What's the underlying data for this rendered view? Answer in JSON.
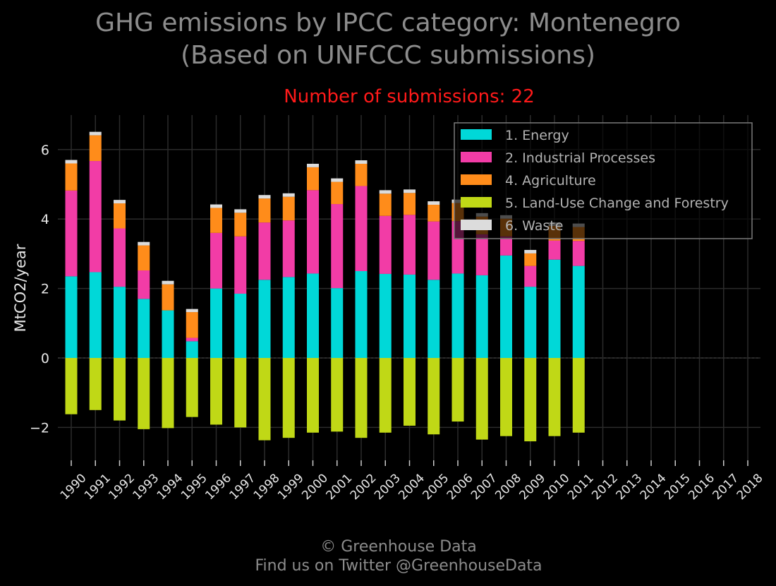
{
  "chart_data": {
    "type": "bar",
    "stacked": true,
    "title": "GHG emissions by IPCC category: Montenegro",
    "title_line2": "(Based on UNFCCC submissions)",
    "subtitle": "Number of submissions: 22",
    "xlabel": "",
    "ylabel": "MtCO2/year",
    "ylim": [
      -2.9,
      7.0
    ],
    "yticks": [
      {
        "value": -2,
        "label": "−2"
      },
      {
        "value": 0,
        "label": "0"
      },
      {
        "value": 2,
        "label": "2"
      },
      {
        "value": 4,
        "label": "4"
      },
      {
        "value": 6,
        "label": "6"
      }
    ],
    "grid": true,
    "legend_position": "top-right",
    "categories": [
      "1990",
      "1991",
      "1992",
      "1993",
      "1994",
      "1995",
      "1996",
      "1997",
      "1998",
      "1999",
      "2000",
      "2001",
      "2002",
      "2003",
      "2004",
      "2005",
      "2006",
      "2007",
      "2008",
      "2009",
      "2010",
      "2011",
      "2012",
      "2013",
      "2014",
      "2015",
      "2016",
      "2017",
      "2018"
    ],
    "series": [
      {
        "name": "1. Energy",
        "color": "#00d8d8",
        "values": [
          2.35,
          2.47,
          2.05,
          1.7,
          1.37,
          0.48,
          2.0,
          1.85,
          2.25,
          2.33,
          2.43,
          2.01,
          2.5,
          2.42,
          2.4,
          2.25,
          2.43,
          2.38,
          2.95,
          2.05,
          2.83,
          2.65,
          null,
          null,
          null,
          null,
          null,
          null,
          null
        ]
      },
      {
        "name": "2. Industrial Processes",
        "color": "#f23ca6",
        "values": [
          2.47,
          3.2,
          1.68,
          0.82,
          0.0,
          0.1,
          1.6,
          1.65,
          1.65,
          1.63,
          2.4,
          2.42,
          2.45,
          1.67,
          1.72,
          1.68,
          1.51,
          1.18,
          0.55,
          0.6,
          0.55,
          0.72,
          null,
          null,
          null,
          null,
          null,
          null,
          null
        ]
      },
      {
        "name": "4. Agriculture",
        "color": "#ff8c1a",
        "values": [
          0.78,
          0.74,
          0.72,
          0.72,
          0.75,
          0.74,
          0.72,
          0.68,
          0.69,
          0.68,
          0.66,
          0.64,
          0.64,
          0.64,
          0.63,
          0.48,
          0.52,
          0.51,
          0.51,
          0.36,
          0.42,
          0.4,
          null,
          null,
          null,
          null,
          null,
          null,
          null
        ]
      },
      {
        "name": "5. Land-Use Change and Forestry",
        "color": "#c0d816",
        "values": [
          -1.62,
          -1.5,
          -1.8,
          -2.05,
          -2.02,
          -1.7,
          -1.92,
          -2.0,
          -2.37,
          -2.3,
          -2.15,
          -2.12,
          -2.3,
          -2.15,
          -1.95,
          -2.2,
          -1.83,
          -2.35,
          -2.25,
          -2.4,
          -2.25,
          -2.15,
          null,
          null,
          null,
          null,
          null,
          null,
          null
        ]
      },
      {
        "name": "6. Waste",
        "color": "#dcdcdc",
        "values": [
          0.1,
          0.1,
          0.1,
          0.1,
          0.1,
          0.09,
          0.1,
          0.1,
          0.1,
          0.1,
          0.1,
          0.1,
          0.1,
          0.1,
          0.1,
          0.1,
          0.1,
          0.1,
          0.1,
          0.1,
          0.1,
          0.1,
          null,
          null,
          null,
          null,
          null,
          null,
          null
        ]
      }
    ],
    "legend_order": [
      "1. Energy",
      "2. Industrial Processes",
      "4. Agriculture",
      "5. Land-Use Change and Forestry",
      "6. Waste"
    ]
  },
  "footer": {
    "line1": "© Greenhouse Data",
    "line2": "Find us on Twitter @GreenhouseData"
  }
}
